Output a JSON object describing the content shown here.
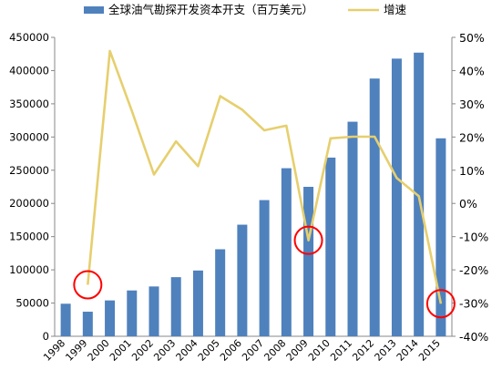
{
  "chart_data": {
    "type": "bar+line",
    "title": "",
    "categories": [
      "1998",
      "1999",
      "2000",
      "2001",
      "2002",
      "2003",
      "2004",
      "2005",
      "2006",
      "2007",
      "2008",
      "2009",
      "2010",
      "2011",
      "2012",
      "2013",
      "2014",
      "2015"
    ],
    "series": [
      {
        "name": "全球油气勘探开发资本开支（百万美元）",
        "type": "bar",
        "axis": "left",
        "color": "#4f81bd",
        "values": [
          49000,
          37000,
          54000,
          69000,
          75000,
          89000,
          99000,
          131000,
          168000,
          205000,
          253000,
          225000,
          269000,
          323000,
          388000,
          418000,
          427000,
          298000
        ]
      },
      {
        "name": "增速",
        "type": "line",
        "axis": "right",
        "color": "#e6cf6e",
        "values": [
          null,
          -24.5,
          45.9,
          27.8,
          8.7,
          18.7,
          11.2,
          32.3,
          28.2,
          22.0,
          23.4,
          -11.1,
          19.6,
          20.1,
          20.1,
          7.7,
          2.2,
          -30.2
        ]
      }
    ],
    "y_left": {
      "min": 0,
      "max": 450000,
      "step": 50000
    },
    "y_right": {
      "min": -40,
      "max": 50,
      "step": 10,
      "unit": "%"
    },
    "highlight_circles": [
      {
        "category": "1999",
        "value": -24.5,
        "color": "#ff0000"
      },
      {
        "category": "2009",
        "value": -11.1,
        "color": "#ff0000"
      },
      {
        "category": "2015",
        "value": -30.2,
        "color": "#ff0000"
      }
    ],
    "grid": false,
    "legend_position": "top"
  }
}
